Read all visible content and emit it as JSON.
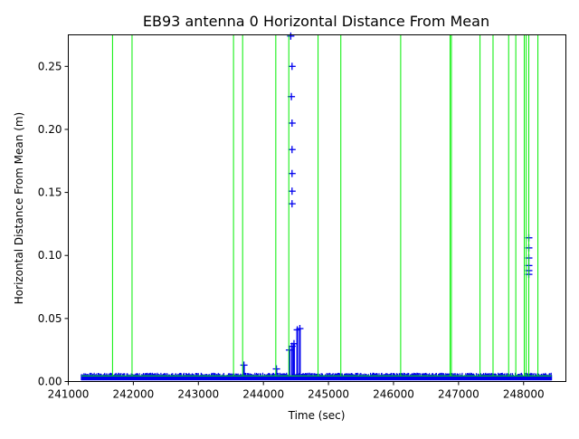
{
  "chart_data": {
    "type": "line",
    "title": "EB93 antenna 0 Horizontal Distance From Mean",
    "xlabel": "Time (sec)",
    "ylabel": "Horizontal Distance From Mean (m)",
    "xlim": [
      241000,
      248650
    ],
    "ylim": [
      0,
      0.275
    ],
    "xticks": [
      241000,
      242000,
      243000,
      244000,
      245000,
      246000,
      247000,
      248000
    ],
    "yticks": [
      0.0,
      0.05,
      0.1,
      0.15,
      0.2,
      0.25
    ],
    "ytick_labels": [
      "0.00",
      "0.05",
      "0.10",
      "0.15",
      "0.20",
      "0.25"
    ],
    "grid": false,
    "legend": "none",
    "colors": {
      "measurements": "#0000ee",
      "green_series": "#00ee00"
    },
    "series": [
      {
        "type": "errorbar-markers",
        "color": "#0000ee",
        "baseline_range": [
          241200,
          248430
        ],
        "baseline_band": [
          0.001,
          0.007
        ],
        "points": [
          {
            "x": 244420,
            "y": 0.274
          },
          {
            "x": 244440,
            "y": 0.25
          },
          {
            "x": 244430,
            "y": 0.226
          },
          {
            "x": 244440,
            "y": 0.205
          },
          {
            "x": 244440,
            "y": 0.184
          },
          {
            "x": 244440,
            "y": 0.165
          },
          {
            "x": 244440,
            "y": 0.151
          },
          {
            "x": 244440,
            "y": 0.141
          },
          {
            "x": 244400,
            "y": 0.025
          },
          {
            "x": 244440,
            "y": 0.028
          },
          {
            "x": 244470,
            "y": 0.03
          },
          {
            "x": 244520,
            "y": 0.041
          },
          {
            "x": 244560,
            "y": 0.042
          },
          {
            "x": 243700,
            "y": 0.013
          },
          {
            "x": 244200,
            "y": 0.01
          },
          {
            "x": 248080,
            "y": 0.114
          },
          {
            "x": 248080,
            "y": 0.106
          },
          {
            "x": 248080,
            "y": 0.098
          },
          {
            "x": 248080,
            "y": 0.092
          },
          {
            "x": 248080,
            "y": 0.088
          },
          {
            "x": 248080,
            "y": 0.085
          }
        ]
      },
      {
        "type": "line",
        "color": "#00ee00",
        "baseline_level": 0.0045,
        "spike_times": [
          241680,
          241980,
          243540,
          243680,
          244190,
          244390,
          244840,
          245190,
          246110,
          246870,
          246890,
          247330,
          247530,
          247770,
          247880,
          248010,
          248040,
          248080,
          248220
        ]
      }
    ]
  }
}
